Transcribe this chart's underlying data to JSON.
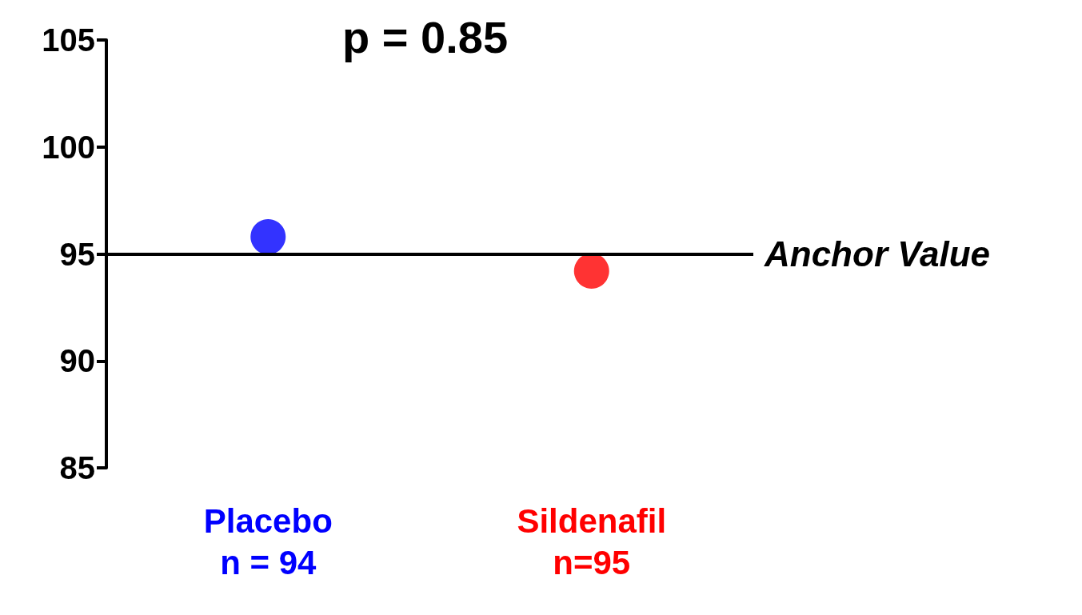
{
  "chart_data": {
    "type": "scatter",
    "categories": [
      "Placebo\nn = 94",
      "Sildenafil\nn=95"
    ],
    "values": [
      95.8,
      94.2
    ],
    "colors": [
      "#0000ff",
      "#ff0000"
    ],
    "ylim": [
      85,
      105
    ],
    "yticks": [
      85,
      90,
      95,
      100,
      105
    ],
    "ref_lines": [
      {
        "axis": "y",
        "value": 95,
        "label": "Anchor Value",
        "color": "#000000"
      }
    ],
    "annotations": [
      "p = 0.85"
    ],
    "marker": "circle",
    "grid": false
  }
}
